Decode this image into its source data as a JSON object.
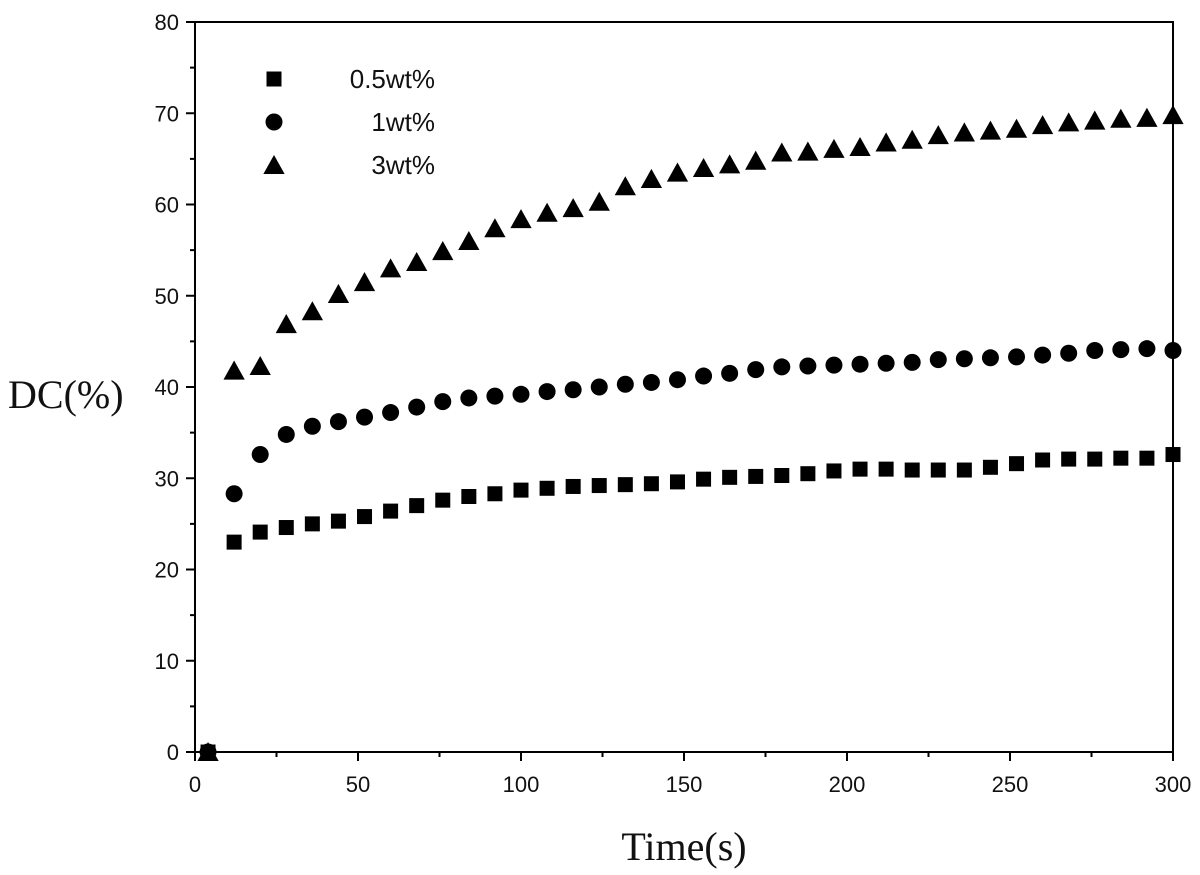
{
  "chart_data": {
    "type": "scatter",
    "xlabel": "Time(s)",
    "ylabel": "DC(%)",
    "xlim": [
      0,
      300
    ],
    "ylim": [
      0,
      80
    ],
    "xticks": [
      0,
      50,
      100,
      150,
      200,
      250,
      300
    ],
    "yticks": [
      0,
      10,
      20,
      30,
      40,
      50,
      60,
      70,
      80
    ],
    "grid": false,
    "legend_position": "top-left",
    "series": [
      {
        "name": "0.5wt%",
        "marker": "square",
        "color": "#000000",
        "x": [
          4,
          12,
          20,
          28,
          36,
          44,
          52,
          60,
          68,
          76,
          84,
          92,
          100,
          108,
          116,
          124,
          132,
          140,
          148,
          156,
          164,
          172,
          180,
          188,
          196,
          204,
          212,
          220,
          228,
          236,
          244,
          252,
          260,
          268,
          276,
          284,
          292,
          300
        ],
        "y": [
          0,
          23,
          24.1,
          24.6,
          25,
          25.3,
          25.8,
          26.4,
          27,
          27.6,
          28,
          28.3,
          28.7,
          28.9,
          29.1,
          29.2,
          29.3,
          29.4,
          29.6,
          29.9,
          30.1,
          30.2,
          30.3,
          30.5,
          30.8,
          31,
          31,
          30.9,
          30.9,
          30.9,
          31.2,
          31.6,
          32,
          32.1,
          32.1,
          32.2,
          32.2,
          32.6
        ]
      },
      {
        "name": "1wt%",
        "marker": "circle",
        "color": "#000000",
        "x": [
          4,
          12,
          20,
          28,
          36,
          44,
          52,
          60,
          68,
          76,
          84,
          92,
          100,
          108,
          116,
          124,
          132,
          140,
          148,
          156,
          164,
          172,
          180,
          188,
          196,
          204,
          212,
          220,
          228,
          236,
          244,
          252,
          260,
          268,
          276,
          284,
          292,
          300
        ],
        "y": [
          0,
          28.3,
          32.6,
          34.8,
          35.7,
          36.2,
          36.7,
          37.2,
          37.8,
          38.4,
          38.8,
          39,
          39.2,
          39.5,
          39.7,
          40,
          40.3,
          40.5,
          40.8,
          41.2,
          41.5,
          41.9,
          42.2,
          42.3,
          42.4,
          42.5,
          42.6,
          42.7,
          43,
          43.1,
          43.2,
          43.3,
          43.5,
          43.7,
          44,
          44.1,
          44.2,
          44
        ]
      },
      {
        "name": "3wt%",
        "marker": "triangle",
        "color": "#000000",
        "x": [
          4,
          12,
          20,
          28,
          36,
          44,
          52,
          60,
          68,
          76,
          84,
          92,
          100,
          108,
          116,
          124,
          132,
          140,
          148,
          156,
          164,
          172,
          180,
          188,
          196,
          204,
          212,
          220,
          228,
          236,
          244,
          252,
          260,
          268,
          276,
          284,
          292,
          300
        ],
        "y": [
          0,
          41.8,
          42.3,
          46.9,
          48.3,
          50.2,
          51.5,
          53,
          53.7,
          54.9,
          56,
          57.4,
          58.4,
          59.1,
          59.6,
          60.3,
          62,
          62.8,
          63.5,
          64,
          64.4,
          64.8,
          65.7,
          65.8,
          66.1,
          66.3,
          66.8,
          67.1,
          67.6,
          67.9,
          68.1,
          68.3,
          68.7,
          69,
          69.2,
          69.4,
          69.5,
          69.8
        ]
      }
    ]
  }
}
